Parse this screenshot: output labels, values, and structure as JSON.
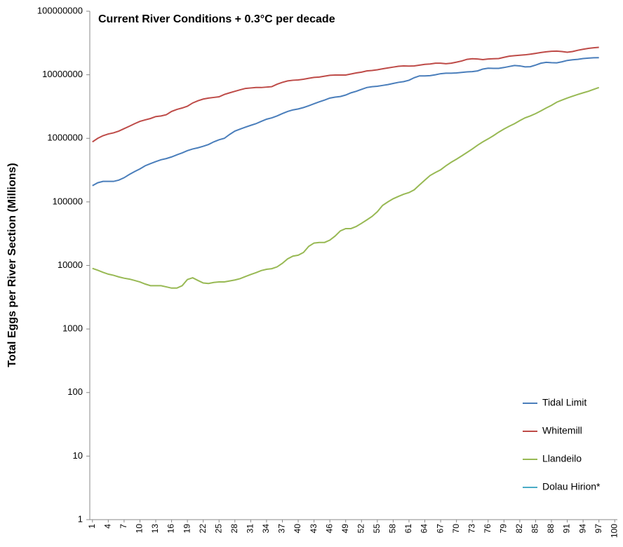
{
  "chart_data": {
    "type": "line",
    "title": "Current River Conditions + 0.3°C per decade",
    "y_label": "Total Eggs per River Section (Millions)",
    "log_y": true,
    "legend": "lower right",
    "xlim": [
      0.5,
      100.5
    ],
    "xticks": [
      1,
      4,
      7,
      10,
      13,
      16,
      19,
      22,
      25,
      28,
      31,
      34,
      37,
      40,
      43,
      46,
      49,
      52,
      55,
      58,
      61,
      64,
      67,
      70,
      73,
      76,
      79,
      82,
      85,
      88,
      91,
      94,
      97,
      100
    ],
    "ylim": [
      1,
      100000000
    ],
    "yticks": [
      1,
      10,
      100,
      1000,
      10000,
      100000,
      1000000,
      10000000,
      100000000
    ],
    "x": [
      1,
      2,
      3,
      4,
      5,
      6,
      7,
      8,
      9,
      10,
      11,
      12,
      13,
      14,
      15,
      16,
      17,
      18,
      19,
      20,
      21,
      22,
      23,
      24,
      25,
      26,
      27,
      28,
      29,
      30,
      31,
      32,
      33,
      34,
      35,
      36,
      37,
      38,
      39,
      40,
      41,
      42,
      43,
      44,
      45,
      46,
      47,
      48,
      49,
      50,
      51,
      52,
      53,
      54,
      55,
      56,
      57,
      58,
      59,
      60,
      61,
      62,
      63,
      64,
      65,
      66,
      67,
      68,
      69,
      70,
      71,
      72,
      73,
      74,
      75,
      76,
      77,
      78,
      79,
      80,
      81,
      82,
      83,
      84,
      85,
      86,
      87,
      88,
      89,
      90,
      91,
      92,
      93,
      94,
      95,
      96,
      97
    ],
    "series": [
      {
        "name": "Tidal Limit",
        "color": "#4a7ebb",
        "values": [
          180000,
          200000,
          210000,
          210000,
          210000,
          220000,
          240000,
          270000,
          300000,
          330000,
          370000,
          400000,
          430000,
          460000,
          480000,
          510000,
          550000,
          590000,
          640000,
          680000,
          710000,
          750000,
          800000,
          880000,
          950000,
          1000000,
          1150000,
          1300000,
          1400000,
          1500000,
          1600000,
          1700000,
          1850000,
          2000000,
          2100000,
          2250000,
          2450000,
          2650000,
          2800000,
          2900000,
          3050000,
          3250000,
          3500000,
          3750000,
          4000000,
          4300000,
          4450000,
          4550000,
          4800000,
          5200000,
          5500000,
          5900000,
          6300000,
          6500000,
          6600000,
          6800000,
          7000000,
          7300000,
          7600000,
          7800000,
          8200000,
          9000000,
          9600000,
          9600000,
          9700000,
          10000000,
          10400000,
          10600000,
          10600000,
          10700000,
          10900000,
          11100000,
          11200000,
          11500000,
          12300000,
          12700000,
          12600000,
          12600000,
          13000000,
          13500000,
          14000000,
          13800000,
          13300000,
          13400000,
          14200000,
          15200000,
          15700000,
          15500000,
          15400000,
          16000000,
          16800000,
          17200000,
          17500000,
          18000000,
          18300000,
          18500000,
          18600000
        ]
      },
      {
        "name": "Whitemill",
        "color": "#be4b48",
        "values": [
          880000,
          1000000,
          1100000,
          1170000,
          1220000,
          1300000,
          1420000,
          1550000,
          1700000,
          1850000,
          1950000,
          2050000,
          2200000,
          2250000,
          2350000,
          2650000,
          2850000,
          3000000,
          3200000,
          3600000,
          3900000,
          4150000,
          4300000,
          4400000,
          4500000,
          4900000,
          5200000,
          5500000,
          5800000,
          6100000,
          6200000,
          6300000,
          6300000,
          6400000,
          6500000,
          7100000,
          7600000,
          8000000,
          8200000,
          8300000,
          8500000,
          8800000,
          9100000,
          9200000,
          9500000,
          9800000,
          9900000,
          9900000,
          9900000,
          10300000,
          10700000,
          11000000,
          11500000,
          11700000,
          12000000,
          12400000,
          12800000,
          13200000,
          13600000,
          13800000,
          13700000,
          13800000,
          14200000,
          14600000,
          14800000,
          15200000,
          15200000,
          14900000,
          15200000,
          15800000,
          16500000,
          17500000,
          17900000,
          17700000,
          17300000,
          17700000,
          17900000,
          18000000,
          18800000,
          19600000,
          20000000,
          20300000,
          20600000,
          21100000,
          21700000,
          22400000,
          23000000,
          23400000,
          23600000,
          23200000,
          22600000,
          23200000,
          24300000,
          25200000,
          26000000,
          26600000,
          27000000
        ]
      },
      {
        "name": "Llandeilo",
        "color": "#98b954",
        "values": [
          9000,
          8400,
          7800,
          7300,
          7000,
          6600,
          6300,
          6100,
          5800,
          5500,
          5100,
          4800,
          4800,
          4800,
          4600,
          4400,
          4400,
          4800,
          6000,
          6400,
          5800,
          5300,
          5200,
          5400,
          5500,
          5500,
          5700,
          5900,
          6200,
          6700,
          7200,
          7700,
          8300,
          8700,
          8900,
          9500,
          10800,
          12700,
          14000,
          14500,
          16000,
          20000,
          22500,
          23000,
          23000,
          25000,
          29000,
          35000,
          38000,
          38000,
          41000,
          46000,
          52000,
          59000,
          70000,
          88000,
          100000,
          112000,
          122000,
          132000,
          140000,
          155000,
          185000,
          220000,
          260000,
          290000,
          320000,
          370000,
          420000,
          470000,
          530000,
          600000,
          680000,
          780000,
          880000,
          980000,
          1100000,
          1250000,
          1400000,
          1550000,
          1700000,
          1900000,
          2100000,
          2250000,
          2450000,
          2700000,
          3000000,
          3300000,
          3700000,
          4000000,
          4300000,
          4600000,
          4900000,
          5200000,
          5500000,
          5900000,
          6300000
        ]
      },
      {
        "name": "Dolau Hirion*",
        "color": "#4bacc6",
        "values": [
          null,
          null,
          null,
          null,
          null,
          null,
          null,
          null,
          null,
          null,
          null,
          null,
          null,
          null,
          null,
          null,
          null,
          null,
          null,
          null,
          null,
          null,
          null,
          null,
          null,
          null,
          null,
          null,
          null,
          null,
          null,
          null,
          null,
          null,
          null,
          null,
          null,
          null,
          null,
          null,
          null,
          null,
          null,
          null,
          null,
          null,
          null,
          null,
          null,
          null,
          null,
          null,
          null,
          null,
          null,
          null,
          null,
          null,
          null,
          null,
          null,
          null,
          null,
          null,
          null,
          null,
          null,
          null,
          null,
          null,
          null,
          null,
          null,
          null,
          null,
          null,
          null,
          null,
          null,
          null,
          null,
          null,
          null,
          null,
          null,
          null,
          null,
          null,
          null,
          null,
          null,
          null,
          null,
          null,
          null,
          null,
          null
        ]
      }
    ]
  }
}
